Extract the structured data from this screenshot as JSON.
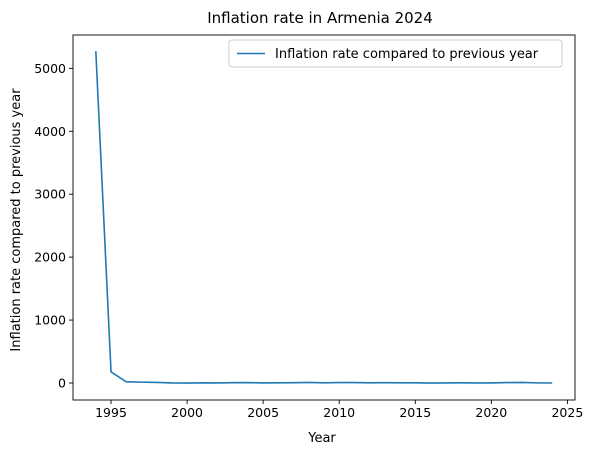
{
  "chart_data": {
    "type": "line",
    "title": "Inflation rate in Armenia 2024",
    "xlabel": "Year",
    "ylabel": "Inflation rate compared to previous year",
    "xlim": [
      1992.5,
      2025.5
    ],
    "ylim": [
      -270,
      5530
    ],
    "xticks": [
      1995,
      2000,
      2005,
      2010,
      2015,
      2020,
      2025
    ],
    "yticks": [
      0,
      1000,
      2000,
      3000,
      4000,
      5000
    ],
    "grid": false,
    "legend_position": "top-right",
    "series": [
      {
        "name": "Inflation rate compared to previous year",
        "color": "#1f77b4",
        "x": [
          1994,
          1995,
          1996,
          1997,
          1998,
          1999,
          2000,
          2001,
          2002,
          2003,
          2004,
          2005,
          2006,
          2007,
          2008,
          2009,
          2010,
          2011,
          2012,
          2013,
          2014,
          2015,
          2016,
          2017,
          2018,
          2019,
          2020,
          2021,
          2022,
          2023,
          2024
        ],
        "y": [
          5273.4,
          176.7,
          18.7,
          14.0,
          8.7,
          0.6,
          -0.8,
          3.1,
          1.1,
          4.7,
          7.0,
          0.6,
          2.9,
          4.4,
          9.0,
          3.5,
          7.3,
          7.7,
          2.6,
          5.8,
          3.0,
          3.7,
          -1.4,
          1.2,
          2.5,
          1.4,
          1.2,
          7.2,
          8.6,
          2.0,
          0.3
        ]
      }
    ]
  }
}
